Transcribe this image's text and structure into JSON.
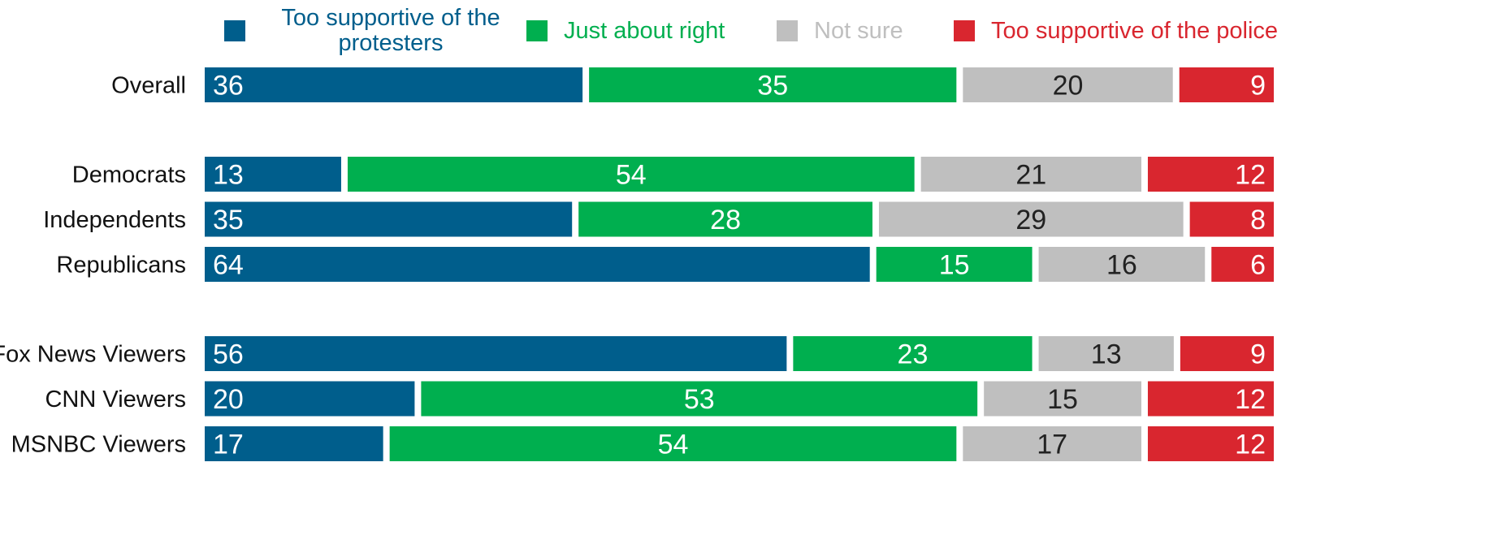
{
  "chart_data": {
    "type": "bar",
    "orientation": "horizontal",
    "stacked": "100%",
    "legend_position": "top",
    "grid": false,
    "series": [
      {
        "name_lines": [
          "Too supportive of the",
          "protesters"
        ],
        "color": "#005e8c",
        "label_color": "#ffffff",
        "label_align": "left"
      },
      {
        "name_lines": [
          "Just about right"
        ],
        "color": "#00af4f",
        "label_color": "#ffffff",
        "label_align": "center"
      },
      {
        "name_lines": [
          "Not sure"
        ],
        "color": "#bfbfbf",
        "label_color": "#222222",
        "label_align": "center"
      },
      {
        "name_lines": [
          "Too supportive of the police"
        ],
        "color": "#d9262f",
        "label_color": "#ffffff",
        "label_align": "right"
      }
    ],
    "rows": [
      {
        "category": "Overall",
        "group": 0,
        "values": [
          36,
          35,
          20,
          9
        ]
      },
      {
        "category": "Democrats",
        "group": 1,
        "values": [
          13,
          54,
          21,
          12
        ]
      },
      {
        "category": "Independents",
        "group": 1,
        "values": [
          35,
          28,
          29,
          8
        ]
      },
      {
        "category": "Republicans",
        "group": 1,
        "values": [
          64,
          15,
          16,
          6
        ]
      },
      {
        "category": "Fox News Viewers",
        "group": 2,
        "values": [
          56,
          23,
          13,
          9
        ]
      },
      {
        "category": "CNN Viewers",
        "group": 2,
        "values": [
          20,
          53,
          15,
          12
        ]
      },
      {
        "category": "MSNBC Viewers",
        "group": 2,
        "values": [
          17,
          54,
          17,
          12
        ]
      }
    ]
  }
}
